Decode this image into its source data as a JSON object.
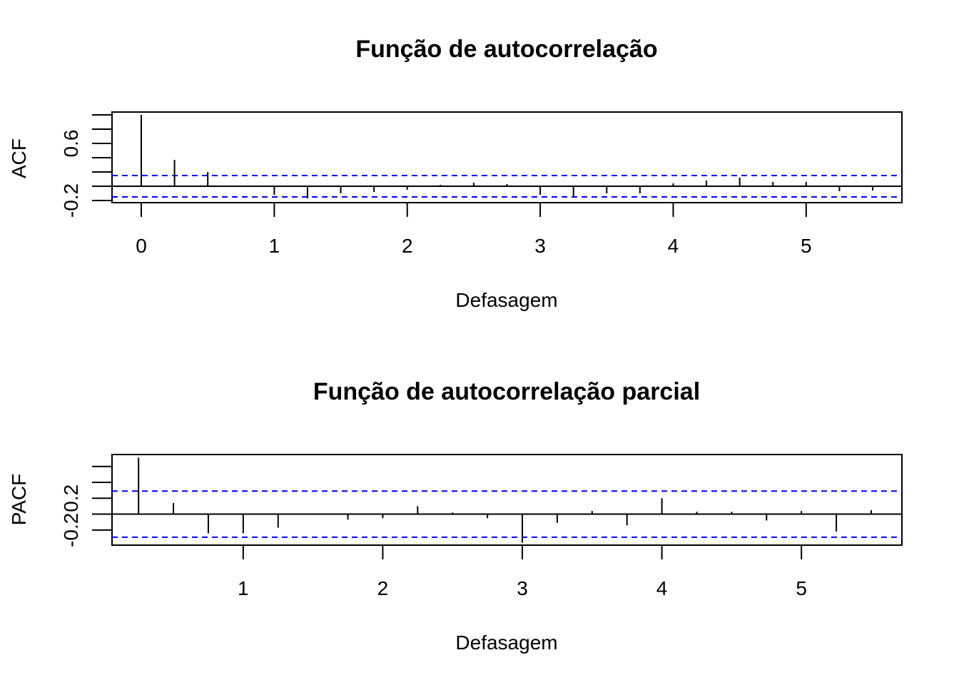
{
  "chart_data": [
    {
      "type": "bar",
      "style": "lollipop-spikes",
      "title": "Função de autocorrelação",
      "xlabel": "Defasagem",
      "ylabel": "ACF",
      "xlim": [
        -0.22,
        5.72
      ],
      "ylim": [
        -0.23,
        1.04
      ],
      "x_ticks": [
        "0",
        "1",
        "2",
        "3",
        "4",
        "5"
      ],
      "y_ticks": [
        "-0.2",
        "0.6"
      ],
      "confidence_bound": 0.15,
      "bound_color": "#0000ff",
      "x": [
        0,
        0.25,
        0.5,
        0.75,
        1,
        1.25,
        1.5,
        1.75,
        2,
        2.25,
        2.5,
        2.75,
        3,
        3.25,
        3.5,
        3.75,
        4,
        4.25,
        4.5,
        4.75,
        5,
        5.25,
        5.5
      ],
      "values": [
        1.0,
        0.37,
        0.2,
        0.01,
        -0.12,
        -0.17,
        -0.1,
        -0.08,
        -0.05,
        0.02,
        0.05,
        0.03,
        -0.12,
        -0.15,
        -0.1,
        -0.1,
        0.04,
        0.08,
        0.12,
        0.06,
        0.06,
        -0.07,
        -0.06
      ]
    },
    {
      "type": "bar",
      "style": "lollipop-spikes",
      "title": "Função de autocorrelação parcial",
      "xlabel": "Defasagem",
      "ylabel": "PACF",
      "xlim": [
        0.06,
        5.72
      ],
      "ylim": [
        -0.39,
        0.75
      ],
      "x_ticks": [
        "1",
        "2",
        "3",
        "4",
        "5"
      ],
      "y_ticks": [
        "-0.2",
        "0.2"
      ],
      "confidence_bound": 0.29,
      "bound_color": "#0000ff",
      "x": [
        0.25,
        0.5,
        0.75,
        1,
        1.25,
        1.5,
        1.75,
        2,
        2.25,
        2.5,
        2.75,
        3,
        3.25,
        3.5,
        3.75,
        4,
        4.25,
        4.5,
        4.75,
        5,
        5.25,
        5.5
      ],
      "values": [
        0.71,
        0.14,
        -0.24,
        -0.24,
        -0.17,
        0.01,
        -0.07,
        -0.05,
        0.1,
        0.02,
        -0.05,
        -0.36,
        -0.11,
        0.04,
        -0.14,
        0.2,
        0.03,
        0.03,
        -0.08,
        0.04,
        -0.22,
        0.05
      ]
    }
  ]
}
